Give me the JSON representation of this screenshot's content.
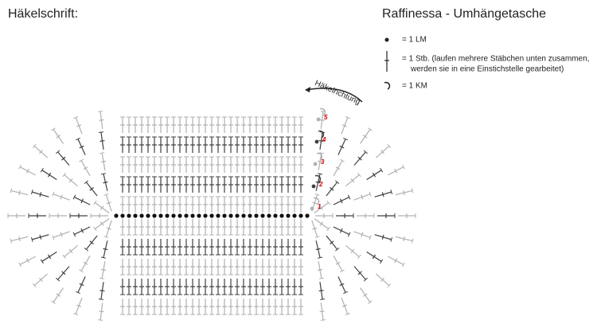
{
  "header": {
    "title": "Häkelschrift:",
    "pattern_name": "Raffinessa - Umhängetasche"
  },
  "legend": {
    "items": [
      {
        "lines": [
          "= 1 LM"
        ]
      },
      {
        "lines": [
          "= 1 Stb. (laufen mehrere Stäbchen unten zusammen,",
          "werden sie in eine Einstichstelle gearbeitet)"
        ]
      },
      {
        "lines": [
          "= 1 KM"
        ]
      }
    ]
  },
  "diagram": {
    "direction_label": "Häkelrichtung",
    "round_numbers": [
      "1",
      "2",
      "3",
      "4",
      "5"
    ]
  }
}
